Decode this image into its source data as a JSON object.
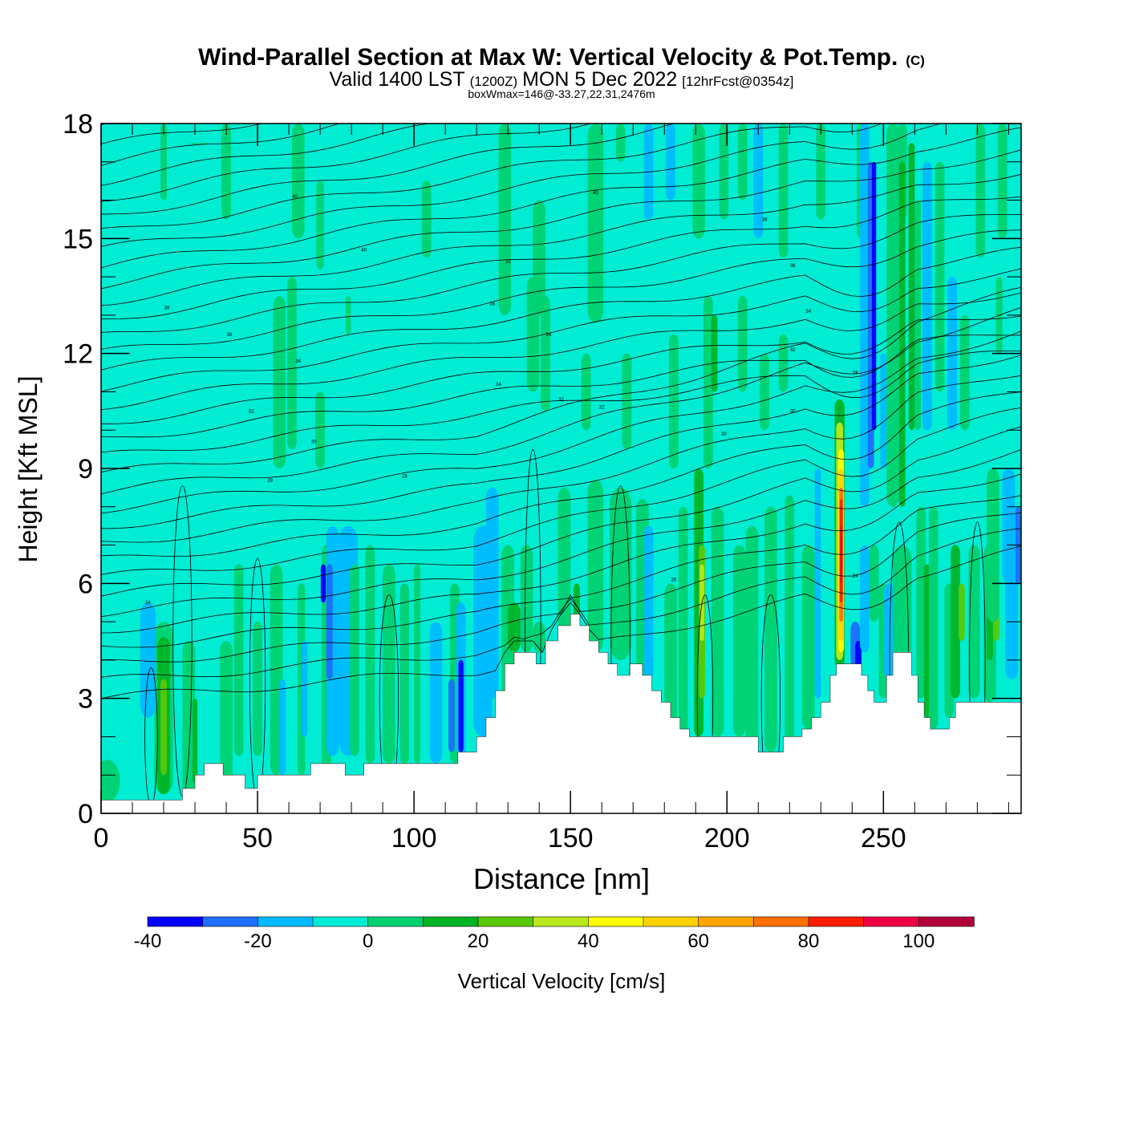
{
  "chart_data": {
    "type": "heatmap",
    "title": "Wind-Parallel Section at Max W: Vertical Velocity & Pot.Temp.",
    "title_mark": "(C)",
    "subtitle": {
      "lead": "Valid 1400 LST",
      "zulu": "(1200Z)",
      "date": "MON 5 Dec 2022",
      "forecast": "[12hrFcst@0354z]"
    },
    "box_info": "boxWmax=146@-33.27,22.31,2476m",
    "xlabel": "Distance [nm]",
    "ylabel": "Height [Kft MSL]",
    "xlim": [
      0,
      294
    ],
    "ylim": [
      0,
      18
    ],
    "x_ticks": [
      "0",
      "50",
      "100",
      "150",
      "200",
      "250"
    ],
    "y_ticks": [
      "0",
      "3",
      "6",
      "9",
      "12",
      "15",
      "18"
    ],
    "x_tick_values": [
      0,
      50,
      100,
      150,
      200,
      250
    ],
    "y_tick_values": [
      0,
      3,
      6,
      9,
      12,
      15,
      18
    ],
    "grid": false,
    "colorbar": {
      "label": "Vertical Velocity [cm/s]",
      "tick_labels": [
        "-40",
        "-20",
        "0",
        "20",
        "40",
        "60",
        "80",
        "100"
      ],
      "levels": [
        -40,
        -30,
        -20,
        -10,
        0,
        10,
        20,
        30,
        40,
        50,
        60,
        70,
        80,
        90,
        100,
        110
      ],
      "colors": [
        "#0000ff",
        "#1e6eff",
        "#00bbff",
        "#00ecd3",
        "#00d271",
        "#00b426",
        "#5ac80a",
        "#b9e81d",
        "#ffff00",
        "#ffd200",
        "#ffa500",
        "#ff7000",
        "#ff1e00",
        "#ee0044",
        "#b2003a"
      ]
    },
    "terrain_kft": [
      [
        0,
        0.35
      ],
      [
        26,
        0.35
      ],
      [
        26,
        0.65
      ],
      [
        30,
        0.65
      ],
      [
        30,
        1.0
      ],
      [
        33,
        1.0
      ],
      [
        33,
        1.3
      ],
      [
        39,
        1.3
      ],
      [
        39,
        1.0
      ],
      [
        46,
        1.0
      ],
      [
        46,
        0.65
      ],
      [
        50,
        0.65
      ],
      [
        50,
        1.0
      ],
      [
        67,
        1.0
      ],
      [
        67,
        1.3
      ],
      [
        78,
        1.3
      ],
      [
        78,
        1.0
      ],
      [
        84,
        1.0
      ],
      [
        84,
        1.3
      ],
      [
        114,
        1.3
      ],
      [
        114,
        1.6
      ],
      [
        120,
        1.6
      ],
      [
        120,
        2.0
      ],
      [
        123,
        2.0
      ],
      [
        123,
        2.5
      ],
      [
        126,
        2.5
      ],
      [
        126,
        3.2
      ],
      [
        129,
        3.2
      ],
      [
        129,
        3.9
      ],
      [
        132,
        3.9
      ],
      [
        132,
        4.2
      ],
      [
        139,
        4.2
      ],
      [
        139,
        3.9
      ],
      [
        142,
        3.9
      ],
      [
        142,
        4.5
      ],
      [
        146,
        4.5
      ],
      [
        146,
        4.9
      ],
      [
        150,
        4.9
      ],
      [
        150,
        5.2
      ],
      [
        153,
        5.2
      ],
      [
        153,
        4.9
      ],
      [
        156,
        4.9
      ],
      [
        156,
        4.5
      ],
      [
        159,
        4.5
      ],
      [
        159,
        4.2
      ],
      [
        162,
        4.2
      ],
      [
        162,
        3.9
      ],
      [
        165,
        3.9
      ],
      [
        165,
        3.6
      ],
      [
        169,
        3.6
      ],
      [
        169,
        3.9
      ],
      [
        173,
        3.9
      ],
      [
        173,
        3.6
      ],
      [
        176,
        3.6
      ],
      [
        176,
        3.2
      ],
      [
        179,
        3.2
      ],
      [
        179,
        2.9
      ],
      [
        182,
        2.9
      ],
      [
        182,
        2.5
      ],
      [
        185,
        2.5
      ],
      [
        185,
        2.2
      ],
      [
        188,
        2.2
      ],
      [
        188,
        2.0
      ],
      [
        210,
        2.0
      ],
      [
        210,
        1.6
      ],
      [
        218,
        1.6
      ],
      [
        218,
        2.0
      ],
      [
        224,
        2.0
      ],
      [
        224,
        2.2
      ],
      [
        227,
        2.2
      ],
      [
        227,
        2.5
      ],
      [
        230,
        2.5
      ],
      [
        230,
        2.9
      ],
      [
        233,
        2.9
      ],
      [
        233,
        3.6
      ],
      [
        235,
        3.6
      ],
      [
        235,
        3.9
      ],
      [
        243,
        3.9
      ],
      [
        243,
        3.6
      ],
      [
        245,
        3.6
      ],
      [
        245,
        3.2
      ],
      [
        247,
        3.2
      ],
      [
        247,
        2.9
      ],
      [
        251,
        2.9
      ],
      [
        251,
        3.6
      ],
      [
        253,
        3.6
      ],
      [
        253,
        4.2
      ],
      [
        259,
        4.2
      ],
      [
        259,
        3.6
      ],
      [
        261,
        3.6
      ],
      [
        261,
        2.9
      ],
      [
        263,
        2.9
      ],
      [
        263,
        2.5
      ],
      [
        265,
        2.5
      ],
      [
        265,
        2.2
      ],
      [
        271,
        2.2
      ],
      [
        271,
        2.5
      ],
      [
        273,
        2.5
      ],
      [
        273,
        2.9
      ],
      [
        294,
        2.9
      ]
    ],
    "theta_labels": [
      {
        "x": 62,
        "y": 16.1,
        "text": "40"
      },
      {
        "x": 84,
        "y": 14.7,
        "text": "40"
      },
      {
        "x": 158,
        "y": 16.2,
        "text": "40"
      },
      {
        "x": 130,
        "y": 14.4,
        "text": "38"
      },
      {
        "x": 212,
        "y": 15.5,
        "text": "38"
      },
      {
        "x": 21,
        "y": 13.2,
        "text": "38"
      },
      {
        "x": 125,
        "y": 13.3,
        "text": "38"
      },
      {
        "x": 221,
        "y": 14.3,
        "text": "36"
      },
      {
        "x": 41,
        "y": 12.5,
        "text": "36"
      },
      {
        "x": 143,
        "y": 12.5,
        "text": "34"
      },
      {
        "x": 226,
        "y": 13.1,
        "text": "34"
      },
      {
        "x": 63,
        "y": 11.8,
        "text": "34"
      },
      {
        "x": 127,
        "y": 11.2,
        "text": "34"
      },
      {
        "x": 221,
        "y": 12.1,
        "text": "32"
      },
      {
        "x": 147,
        "y": 10.8,
        "text": "32"
      },
      {
        "x": 48,
        "y": 10.5,
        "text": "32"
      },
      {
        "x": 160,
        "y": 10.6,
        "text": "32"
      },
      {
        "x": 68,
        "y": 9.7,
        "text": "30"
      },
      {
        "x": 221,
        "y": 10.5,
        "text": "30"
      },
      {
        "x": 199,
        "y": 9.9,
        "text": "30"
      },
      {
        "x": 54,
        "y": 8.7,
        "text": "28"
      },
      {
        "x": 97,
        "y": 8.8,
        "text": "28"
      },
      {
        "x": 241,
        "y": 11.5,
        "text": "28"
      },
      {
        "x": 15,
        "y": 5.5,
        "text": "24"
      },
      {
        "x": 183,
        "y": 6.1,
        "text": "26"
      },
      {
        "x": 241,
        "y": 6.2,
        "text": "24"
      }
    ]
  }
}
